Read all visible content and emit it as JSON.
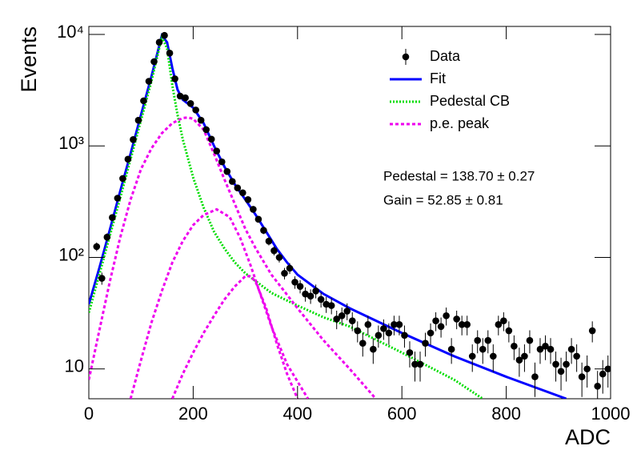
{
  "chart_data": {
    "type": "scatter",
    "ylabel": "Events",
    "xlabel": "ADC",
    "log_y": true,
    "xlim": [
      0,
      1000
    ],
    "ylim": [
      5.4,
      11800
    ],
    "xticks": [
      0,
      200,
      400,
      600,
      800,
      1000
    ],
    "yticks": [
      10,
      {
        "value": 100,
        "label": "10²"
      },
      {
        "value": 1000,
        "label": "10³"
      },
      {
        "value": 10000,
        "label": "10⁴"
      }
    ],
    "legend": "top-right",
    "annotations": [
      "Pedestal = 138.70 ± 0.27",
      "Gain = 52.85 ± 0.81"
    ],
    "data": {
      "name": "Data",
      "color": "#000000",
      "x": [
        15,
        25,
        35,
        45,
        55,
        65,
        75,
        85,
        95,
        105,
        115,
        125,
        135,
        145,
        155,
        165,
        175,
        185,
        195,
        205,
        215,
        225,
        235,
        245,
        255,
        265,
        275,
        285,
        295,
        305,
        315,
        325,
        335,
        345,
        355,
        365,
        375,
        385,
        395,
        405,
        415,
        425,
        435,
        445,
        455,
        465,
        475,
        485,
        495,
        505,
        515,
        525,
        535,
        545,
        555,
        565,
        575,
        585,
        595,
        605,
        615,
        625,
        635,
        645,
        655,
        665,
        675,
        685,
        695,
        705,
        715,
        725,
        735,
        745,
        755,
        765,
        775,
        785,
        795,
        805,
        815,
        825,
        835,
        845,
        855,
        865,
        875,
        885,
        895,
        905,
        915,
        925,
        935,
        945,
        955,
        965,
        975,
        985,
        995
      ],
      "values": [
        125,
        65,
        152,
        228,
        340,
        510,
        760,
        1140,
        1700,
        2540,
        3800,
        5700,
        8500,
        9800,
        6800,
        4000,
        2800,
        2700,
        2400,
        2100,
        1700,
        1400,
        1150,
        900,
        720,
        590,
        480,
        420,
        380,
        330,
        270,
        220,
        175,
        140,
        115,
        100,
        72,
        80,
        60,
        55,
        47,
        45,
        50,
        42,
        38,
        37,
        28,
        30,
        33,
        27,
        22,
        17,
        25,
        15,
        20,
        23,
        21,
        25,
        25,
        20,
        14,
        11,
        11,
        17,
        21,
        27,
        24,
        30,
        15,
        28,
        25,
        25,
        13,
        18,
        15,
        18,
        13,
        25,
        27,
        22,
        16,
        12,
        13,
        18,
        8.5,
        15,
        16,
        15,
        11,
        9.5,
        11,
        15,
        13,
        8.5,
        10,
        22,
        7,
        9,
        10
      ],
      "errors": [
        11.2,
        8.1,
        12.3,
        15.1,
        18.4,
        22.6,
        27.6,
        33.8,
        41.2,
        50.4,
        61.6,
        75.5,
        92.2,
        99,
        82.5,
        63.2,
        52.9,
        52,
        49,
        45.8,
        41.2,
        37.4,
        33.9,
        30,
        26.8,
        24.3,
        21.9,
        20.5,
        19.5,
        18.2,
        16.4,
        14.8,
        13.2,
        11.8,
        10.7,
        10,
        8.5,
        8.9,
        7.7,
        7.4,
        6.9,
        6.7,
        7.1,
        6.5,
        6.2,
        6.1,
        5.3,
        5.5,
        5.7,
        5.2,
        4.7,
        4.1,
        5,
        3.9,
        4.5,
        4.8,
        4.6,
        5,
        5,
        4.5,
        3.7,
        3.3,
        3.3,
        4.1,
        4.6,
        5.2,
        4.9,
        5.5,
        3.9,
        5.3,
        5,
        5,
        3.6,
        4.2,
        3.9,
        4.2,
        3.6,
        5,
        5.2,
        4.7,
        4,
        3.5,
        3.6,
        4.2,
        2.9,
        3.9,
        4,
        3.9,
        3.3,
        3.1,
        3.3,
        3.9,
        3.6,
        2.9,
        3.2,
        4.7,
        2.6,
        3,
        3.2
      ]
    },
    "series": [
      {
        "name": "Fit",
        "color": "#0000ff",
        "style": "solid",
        "curves": [
          {
            "x": [
              0,
              20,
              40,
              60,
              80,
              100,
              120,
              140,
              150,
              160,
              170,
              180,
              200,
              220,
              240,
              260,
              280,
              300,
              320,
              340,
              360,
              380,
              400,
              450,
              500,
              600,
              700,
              800,
              915
            ],
            "values": [
              38,
              80,
              175,
              390,
              850,
              1900,
              4200,
              9800,
              8500,
              5000,
              3200,
              2600,
              2200,
              1600,
              1000,
              650,
              450,
              330,
              240,
              170,
              120,
              90,
              70,
              47,
              35,
              21,
              13,
              8.5,
              5.4
            ]
          }
        ]
      },
      {
        "name": "Pedestal CB",
        "color": "#00dd00",
        "style": "dotted",
        "curves": [
          {
            "x": [
              0,
              20,
              40,
              60,
              80,
              100,
              120,
              140,
              150,
              160,
              170,
              180,
              200,
              220,
              240,
              260,
              280,
              300,
              350,
              400,
              450,
              500,
              600,
              700,
              755
            ],
            "values": [
              32,
              70,
              155,
              340,
              760,
              1700,
              3800,
              9500,
              7500,
              3500,
              1900,
              1150,
              520,
              280,
              170,
              120,
              90,
              72,
              48,
              37,
              29,
              24,
              14,
              8,
              5.4
            ]
          }
        ]
      },
      {
        "name": "p.e. peak",
        "color": "#ee00ee",
        "style": "dashed",
        "curves": [
          {
            "x": [
              0,
              20,
              40,
              60,
              80,
              100,
              120,
              140,
              160,
              180,
              190,
              200,
              220,
              240,
              260,
              280,
              300,
              320,
              350,
              400,
              450,
              500,
              550
            ],
            "values": [
              8,
              22,
              60,
              150,
              330,
              620,
              950,
              1300,
              1600,
              1780,
              1800,
              1750,
              1400,
              850,
              500,
              300,
              180,
              120,
              70,
              35,
              18,
              10,
              5.4
            ]
          },
          {
            "x": [
              80,
              100,
              120,
              140,
              160,
              180,
              200,
              220,
              245,
              270,
              290,
              310,
              330,
              350,
              380,
              420
            ],
            "values": [
              5.4,
              12,
              26,
              50,
              90,
              140,
              195,
              240,
              270,
              230,
              150,
              85,
              45,
              24,
              11,
              5.4
            ]
          },
          {
            "x": [
              160,
              180,
              200,
              220,
              240,
              260,
              280,
              300,
              310,
              320,
              340,
              360,
              380,
              400
            ],
            "values": [
              5.4,
              9,
              14,
              21,
              30,
              42,
              55,
              68,
              68,
              60,
              35,
              17,
              9,
              5.4
            ]
          }
        ]
      }
    ]
  }
}
